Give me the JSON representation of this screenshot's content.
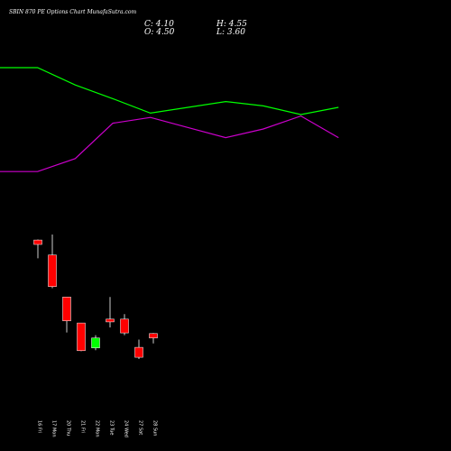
{
  "header": {
    "title": "SBIN 870 PE Options Chart MunafaSutra.com",
    "close_label": "C:",
    "close_value": "4.10",
    "open_label": "O:",
    "open_value": "4.50",
    "high_label": "H:",
    "high_value": "4.55",
    "low_label": "L:",
    "low_value": "3.60"
  },
  "chart_data": {
    "type": "candlestick",
    "title": "SBIN 870 PE Options Chart MunafaSutra.com",
    "background": "#000000",
    "up_color": "#00ff00",
    "down_color": "#ff0000",
    "candles": [
      {
        "date": "16 Fri",
        "open": 12.95,
        "high": 13.0,
        "low": 11.3,
        "close": 12.55
      },
      {
        "date": "17 Mon",
        "open": 11.6,
        "high": 13.45,
        "low": 8.6,
        "close": 8.75
      },
      {
        "date": "20 Thu",
        "open": 7.8,
        "high": 7.8,
        "low": 4.6,
        "close": 5.65
      },
      {
        "date": "21 Fri",
        "open": 5.45,
        "high": 5.45,
        "low": 2.9,
        "close": 2.95
      },
      {
        "date": "22 Mon",
        "open": 3.2,
        "high": 4.35,
        "low": 3.0,
        "close": 4.1
      },
      {
        "date": "23 Tue",
        "open": 5.8,
        "high": 7.8,
        "low": 5.05,
        "close": 5.55
      },
      {
        "date": "24 Wed",
        "open": 5.8,
        "high": 6.25,
        "low": 4.35,
        "close": 4.55
      },
      {
        "date": "27 Sat",
        "open": 3.25,
        "high": 3.95,
        "low": 2.2,
        "close": 2.35
      },
      {
        "date": "28 Sun",
        "open": 4.5,
        "high": 4.55,
        "low": 3.6,
        "close": 4.1
      }
    ],
    "overlay_lines": [
      {
        "color": "#00ff00",
        "values": [
          100,
          100,
          88,
          78.5,
          68.5,
          72.5,
          76.5,
          73.5,
          67.5,
          72.5
        ]
      },
      {
        "color": "#cc00cc",
        "values": [
          28,
          28,
          37,
          61.5,
          65.5,
          58.5,
          51.5,
          57.5,
          66.5,
          51.5
        ]
      }
    ],
    "overlay_ylim": [
      0,
      100
    ]
  }
}
